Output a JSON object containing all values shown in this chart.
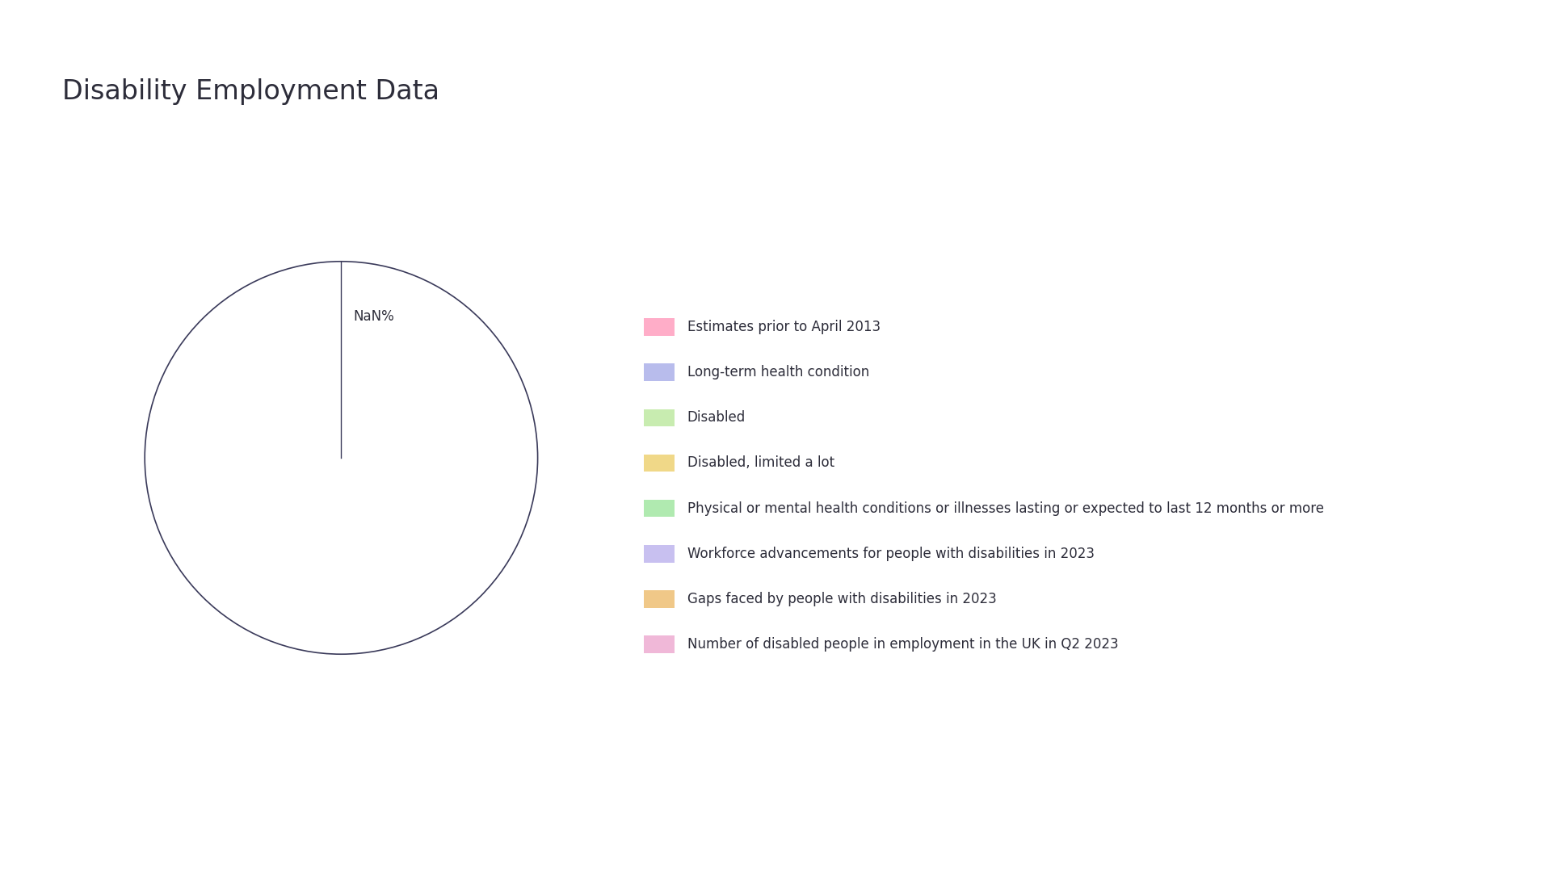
{
  "title": "Disability Employment Data",
  "title_fontsize": 24,
  "background_color": "#ffffff",
  "legend_labels": [
    "Estimates prior to April 2013",
    "Long-term health condition",
    "Disabled",
    "Disabled, limited a lot",
    "Physical or mental health conditions or illnesses lasting or expected to last 12 months or more",
    "Workforce advancements for people with disabilities in 2023",
    "Gaps faced by people with disabilities in 2023",
    "Number of disabled people in employment in the UK in Q2 2023"
  ],
  "legend_colors": [
    "#ffadc8",
    "#b8bcec",
    "#c8ecb0",
    "#f0d888",
    "#b0eab0",
    "#c8c0f0",
    "#f0c888",
    "#f0b8d8"
  ],
  "text_color": "#2d2d3a",
  "nan_label": "NaN%",
  "circle_color": "#3a3a5a",
  "circle_linewidth": 1.2
}
